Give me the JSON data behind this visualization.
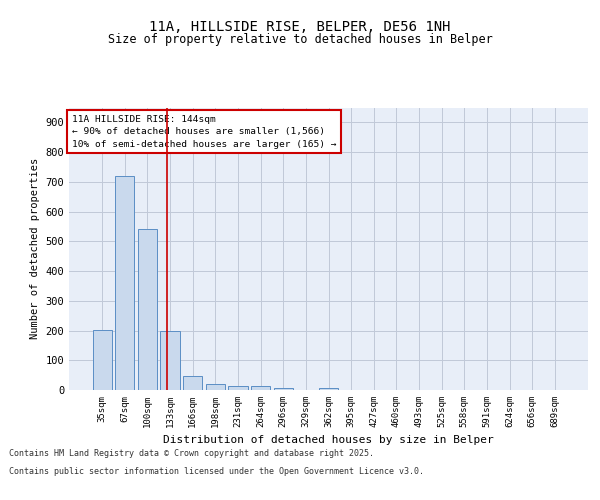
{
  "title_line1": "11A, HILLSIDE RISE, BELPER, DE56 1NH",
  "title_line2": "Size of property relative to detached houses in Belper",
  "xlabel": "Distribution of detached houses by size in Belper",
  "ylabel": "Number of detached properties",
  "categories": [
    "35sqm",
    "67sqm",
    "100sqm",
    "133sqm",
    "166sqm",
    "198sqm",
    "231sqm",
    "264sqm",
    "296sqm",
    "329sqm",
    "362sqm",
    "395sqm",
    "427sqm",
    "460sqm",
    "493sqm",
    "525sqm",
    "558sqm",
    "591sqm",
    "624sqm",
    "656sqm",
    "689sqm"
  ],
  "values": [
    203,
    720,
    543,
    198,
    48,
    20,
    15,
    12,
    8,
    0,
    7,
    0,
    0,
    0,
    0,
    0,
    0,
    0,
    0,
    0,
    0
  ],
  "bar_color": "#c9d9ed",
  "bar_edge_color": "#5b8ec5",
  "grid_color": "#c0c8d8",
  "background_color": "#e8eef8",
  "vline_x": 2.87,
  "vline_color": "#cc0000",
  "annotation_text": "11A HILLSIDE RISE: 144sqm\n← 90% of detached houses are smaller (1,566)\n10% of semi-detached houses are larger (165) →",
  "annotation_box_color": "#cc0000",
  "ylim": [
    0,
    950
  ],
  "yticks": [
    0,
    100,
    200,
    300,
    400,
    500,
    600,
    700,
    800,
    900
  ],
  "footer_line1": "Contains HM Land Registry data © Crown copyright and database right 2025.",
  "footer_line2": "Contains public sector information licensed under the Open Government Licence v3.0."
}
